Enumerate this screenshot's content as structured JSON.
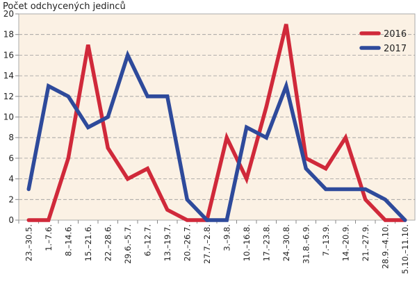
{
  "chart_data": {
    "type": "line",
    "title": "Počet odchycených jedinců",
    "ylim": [
      0,
      20
    ],
    "yticks": [
      0,
      2,
      4,
      6,
      8,
      10,
      12,
      14,
      16,
      18,
      20
    ],
    "grid": "horizontal dashed",
    "legend_position": "top-right",
    "background": "#fbf1e4",
    "categories": [
      "23.–30.5.",
      "1.–7.6.",
      "8.–14.6.",
      "15.–21.6.",
      "22.–28.6.",
      "29.6.–5.7.",
      "6.–12.7.",
      "13.–19.7.",
      "20.–26.7.",
      "27.7.–2.8.",
      "3.–9.8.",
      "10.–16.8.",
      "17.–23.8.",
      "24.–30.8.",
      "31.8.–6.9.",
      "7.–13.9.",
      "14.–20.9.",
      "21.–27.9.",
      "28.9.–4.10.",
      "5.10.–11.10."
    ],
    "series": [
      {
        "name": "2016",
        "color": "#d0293a",
        "values": [
          0,
          0,
          6,
          17,
          7,
          4,
          5,
          1,
          0,
          0,
          8,
          4,
          11,
          19,
          6,
          5,
          8,
          2,
          0,
          0
        ]
      },
      {
        "name": "2017",
        "color": "#2e4a9b",
        "values": [
          3,
          13,
          12,
          9,
          10,
          16,
          12,
          12,
          2,
          0,
          0,
          9,
          8,
          13,
          5,
          3,
          3,
          3,
          2,
          0
        ]
      }
    ]
  }
}
